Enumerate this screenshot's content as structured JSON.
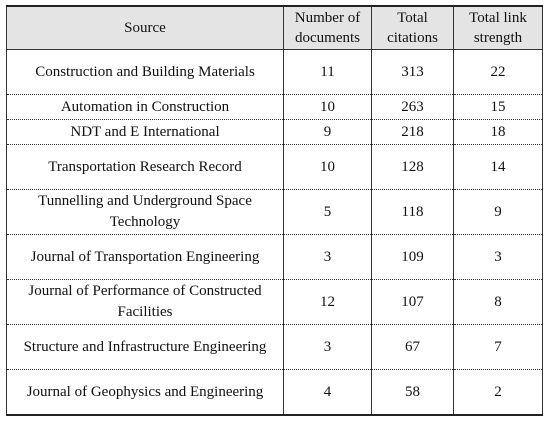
{
  "table": {
    "headers": {
      "source": "Source",
      "documents": "Number of documents",
      "citations": "Total citations",
      "link_strength": "Total link strength"
    },
    "rows": [
      {
        "source": "Construction and Building Materials",
        "documents": "11",
        "citations": "313",
        "link_strength": "22"
      },
      {
        "source": "Automation in Construction",
        "documents": "10",
        "citations": "263",
        "link_strength": "15"
      },
      {
        "source": "NDT and E International",
        "documents": "9",
        "citations": "218",
        "link_strength": "18"
      },
      {
        "source": "Transportation Research Record",
        "documents": "10",
        "citations": "128",
        "link_strength": "14"
      },
      {
        "source": "Tunnelling and Underground Space Technology",
        "documents": "5",
        "citations": "118",
        "link_strength": "9"
      },
      {
        "source": "Journal of Transportation Engineering",
        "documents": "3",
        "citations": "109",
        "link_strength": "3"
      },
      {
        "source": "Journal of Performance of Constructed Facilities",
        "documents": "12",
        "citations": "107",
        "link_strength": "8"
      },
      {
        "source": "Structure and Infrastructure Engineering",
        "documents": "3",
        "citations": "67",
        "link_strength": "7"
      },
      {
        "source": "Journal of Geophysics and Engineering",
        "documents": "4",
        "citations": "58",
        "link_strength": "2"
      }
    ]
  }
}
